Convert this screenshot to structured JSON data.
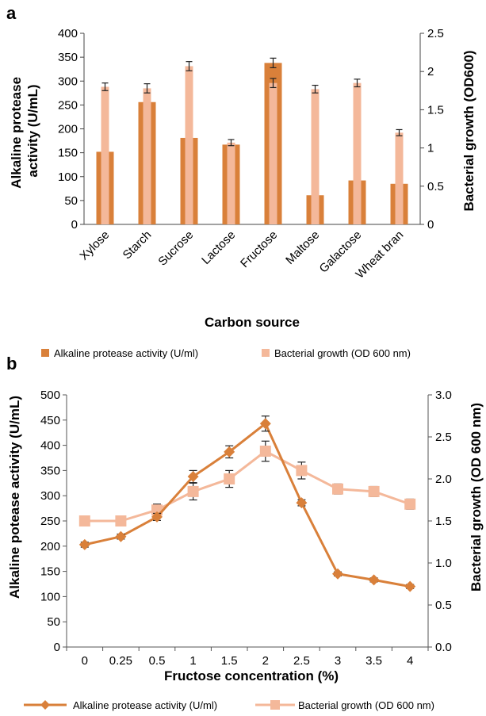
{
  "chart_data": [
    {
      "panel_label": "a",
      "type": "bar",
      "xlabel": "Carbon source",
      "ylabel_left": "Alkaline protease activity (U/mL)",
      "ylabel_right": "Bacterial growth (OD600)",
      "ylim_left": [
        0,
        400
      ],
      "ylim_right": [
        0,
        2.5
      ],
      "yticks_left": [
        "0",
        "50",
        "100",
        "150",
        "200",
        "250",
        "300",
        "350",
        "400"
      ],
      "yticks_right": [
        "0",
        "0.5",
        "1",
        "1.5",
        "2",
        "2.5"
      ],
      "categories": [
        "Xylose",
        "Starch",
        "Sucrose",
        "Lactose",
        "Fructose",
        "Maltose",
        "Galactose",
        "Wheat bran"
      ],
      "series": [
        {
          "key": "protease",
          "axis": "left",
          "color": "#d9803a",
          "values": [
            152,
            256,
            181,
            167,
            338,
            61,
            92,
            85
          ],
          "errors": [
            0,
            0,
            0,
            0,
            10,
            0,
            0,
            0
          ]
        },
        {
          "key": "growth",
          "axis": "right",
          "color": "#f4b89a",
          "values": [
            1.8,
            1.78,
            2.07,
            1.07,
            1.85,
            1.77,
            1.85,
            1.2
          ],
          "errors": [
            0.05,
            0.06,
            0.06,
            0.04,
            0.06,
            0.05,
            0.05,
            0.04
          ]
        }
      ]
    },
    {
      "panel_label": "b",
      "type": "line",
      "xlabel": "Fructose concentration (%)",
      "ylabel_left": "Alkaline potease activity (U/mL)",
      "ylabel_right": "Bacterial growth (OD 600 nm)",
      "ylim_left": [
        0,
        500
      ],
      "ylim_right": [
        0,
        3.0
      ],
      "yticks_left": [
        "0",
        "50",
        "100",
        "150",
        "200",
        "250",
        "300",
        "350",
        "400",
        "450",
        "500"
      ],
      "yticks_right": [
        "0.0",
        "0.5",
        "1.0",
        "1.5",
        "2.0",
        "2.5",
        "3.0"
      ],
      "categories": [
        "0",
        "0.25",
        "0.5",
        "1",
        "1.5",
        "2",
        "2.5",
        "3",
        "3.5",
        "4"
      ],
      "top_legend": [
        "Alkaline protease activity (U/ml)",
        "Bacterial growth (OD 600 nm)"
      ],
      "bottom_legend": [
        "Alkaline protease activity (U/ml)",
        "Bacterial growth (OD 600 nm)"
      ],
      "series": [
        {
          "key": "protease",
          "axis": "left",
          "color": "#d9803a",
          "marker": "diamond",
          "values": [
            203,
            219,
            258,
            338,
            387,
            443,
            286,
            145,
            133,
            120
          ],
          "errors": [
            5,
            5,
            7,
            12,
            12,
            15,
            6,
            4,
            4,
            4
          ]
        },
        {
          "key": "growth",
          "axis": "right",
          "color": "#f4b89a",
          "marker": "square",
          "values": [
            1.5,
            1.5,
            1.63,
            1.85,
            2.0,
            2.33,
            2.1,
            1.88,
            1.85,
            1.7
          ],
          "errors": [
            0.05,
            0.05,
            0.07,
            0.1,
            0.1,
            0.12,
            0.1,
            0.06,
            0.06,
            0.06
          ]
        }
      ]
    }
  ]
}
